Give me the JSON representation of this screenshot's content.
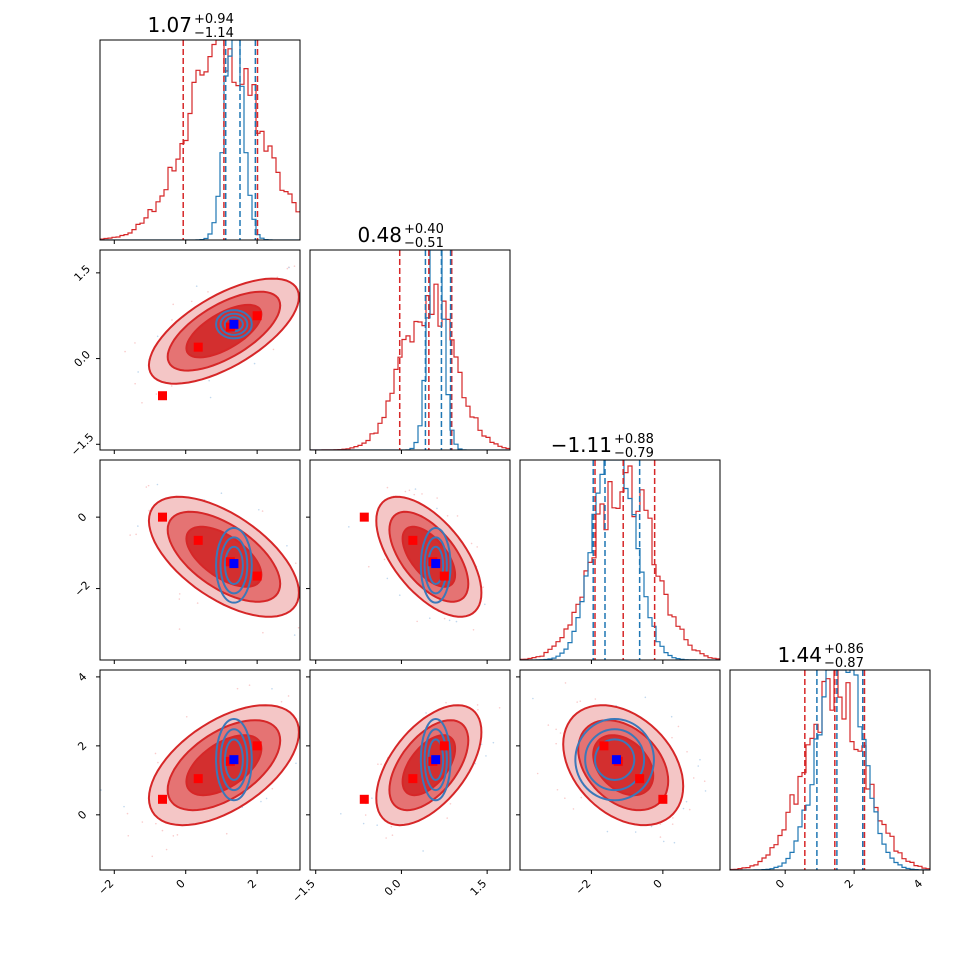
{
  "chart_data": {
    "type": "corner",
    "parameters": 4,
    "colors": {
      "red": "#d62728",
      "red_dark": "#d32f2f",
      "red_mid": "#e57373",
      "red_light": "#f4c6c6",
      "blue": "#1f77b4",
      "blue_contour": "#3b78b9",
      "true_marker": "#0000ff",
      "sample_marker": "#ff0000"
    },
    "titles": [
      {
        "median": "1.07",
        "plus": "+0.94",
        "minus": "−1.14"
      },
      {
        "median": "0.48",
        "plus": "+0.40",
        "minus": "−0.51"
      },
      {
        "median": "−1.11",
        "plus": "+0.88",
        "minus": "−0.79"
      },
      {
        "median": "1.44",
        "plus": "+0.86",
        "minus": "−0.87"
      }
    ],
    "axes": [
      {
        "range": [
          -2.4,
          3.2
        ],
        "ticks": [
          -2,
          0,
          2
        ],
        "tick_labels": [
          "−2",
          "0",
          "2"
        ]
      },
      {
        "range": [
          -1.6,
          1.9
        ],
        "ticks": [
          -1.5,
          0.0,
          1.5
        ],
        "tick_labels": [
          "−1.5",
          "0.0",
          "1.5"
        ]
      },
      {
        "range": [
          -4.0,
          1.6
        ],
        "ticks": [
          -2,
          0
        ],
        "tick_labels": [
          "−2",
          "0"
        ]
      },
      {
        "range": [
          -1.6,
          4.2
        ],
        "ticks": [
          0,
          2,
          4
        ],
        "tick_labels": [
          "0",
          "2",
          "4"
        ]
      }
    ],
    "quantile_lines": {
      "red": [
        [
          -0.07,
          1.07,
          2.01
        ],
        [
          -0.03,
          0.48,
          0.88
        ],
        [
          -1.9,
          -1.11,
          -0.23
        ],
        [
          0.57,
          1.44,
          2.3
        ]
      ],
      "blue": [
        [
          1.12,
          1.52,
          1.95
        ],
        [
          0.42,
          0.7,
          0.86
        ],
        [
          -1.95,
          -1.62,
          -0.65
        ],
        [
          0.92,
          1.5,
          2.25
        ]
      ]
    },
    "histograms": {
      "red": [
        {
          "mu": 1.07,
          "sigma": 1.05
        },
        {
          "mu": 0.48,
          "sigma": 0.46
        },
        {
          "mu": -1.11,
          "sigma": 0.84
        },
        {
          "mu": 1.44,
          "sigma": 0.87
        }
      ],
      "blue": [
        {
          "mu": 1.35,
          "sigma": 0.25
        },
        {
          "mu": 0.6,
          "sigma": 0.13
        },
        {
          "mu": -1.35,
          "sigma": 0.55
        },
        {
          "mu": 1.6,
          "sigma": 0.62
        }
      ]
    },
    "true_value": [
      1.35,
      0.6,
      -1.3,
      1.6
    ],
    "sample_points": [
      [
        -0.65,
        -0.65,
        0.0,
        0.45
      ],
      [
        0.35,
        0.2,
        -0.65,
        1.05
      ],
      [
        1.25,
        0.55,
        -1.25,
        1.55
      ],
      [
        2.0,
        0.75,
        -1.65,
        2.0
      ]
    ],
    "correlations": {
      "1-0": 0.65,
      "2-0": -0.6,
      "2-1": -0.6,
      "3-0": 0.55,
      "3-1": 0.55,
      "3-2": -0.35
    }
  }
}
